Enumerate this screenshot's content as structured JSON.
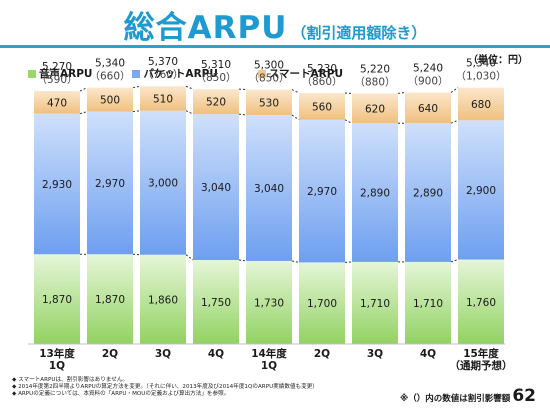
{
  "header": {
    "title": "総合ARPU",
    "subtitle": "（割引適用額除き）",
    "unit": "（単位：円）"
  },
  "legend": [
    {
      "marker": "░",
      "label": "音声ARPU",
      "color": "#9bd76a"
    },
    {
      "marker": "░",
      "label": "パケットARPU",
      "color": "#7ba8f0"
    },
    {
      "marker": "░",
      "label": "スマートARPU",
      "color": "#f3c98a"
    }
  ],
  "colors": {
    "voice_top": "#e6f6d8",
    "voice_bottom": "#92d262",
    "packet_top": "#cfe0fb",
    "packet_bottom": "#6e9ff0",
    "smart_top": "#fbe7cc",
    "smart_bottom": "#f0c07e",
    "connector": "#333333"
  },
  "chart_data": {
    "type": "bar",
    "stacked": true,
    "categories": [
      [
        "13年度",
        "1Q"
      ],
      [
        "2Q"
      ],
      [
        "3Q"
      ],
      [
        "4Q"
      ],
      [
        "14年度",
        "1Q"
      ],
      [
        "2Q"
      ],
      [
        "3Q"
      ],
      [
        "4Q"
      ],
      [
        "15年度",
        "（通期予想）"
      ]
    ],
    "series": [
      {
        "name": "音声ARPU",
        "values": [
          1870,
          1870,
          1860,
          1750,
          1730,
          1700,
          1710,
          1710,
          1760
        ]
      },
      {
        "name": "パケットARPU",
        "values": [
          2930,
          2970,
          3000,
          3040,
          3040,
          2970,
          2890,
          2890,
          2900
        ]
      },
      {
        "name": "スマートARPU",
        "values": [
          470,
          500,
          510,
          520,
          530,
          560,
          620,
          640,
          680
        ]
      }
    ],
    "totals": [
      5270,
      5340,
      5370,
      5310,
      5300,
      5230,
      5220,
      5240,
      5340
    ],
    "discounts": [
      590,
      660,
      760,
      850,
      850,
      860,
      880,
      900,
      1030
    ],
    "value_labels": {
      "voice": [
        "1,870",
        "1,870",
        "1,860",
        "1,750",
        "1,730",
        "1,700",
        "1,710",
        "1,710",
        "1,760"
      ],
      "packet": [
        "2,930",
        "2,970",
        "3,000",
        "3,040",
        "3,040",
        "2,970",
        "2,890",
        "2,890",
        "2,900"
      ],
      "smart": [
        "470",
        "500",
        "510",
        "520",
        "530",
        "560",
        "620",
        "640",
        "680"
      ],
      "totals": [
        "5,270",
        "5,340",
        "5,370",
        "5,310",
        "5,300",
        "5,230",
        "5,220",
        "5,240",
        "5,340"
      ],
      "discounts": [
        "（590）",
        "（660）",
        "（760）",
        "（850）",
        "（850）",
        "（860）",
        "（880）",
        "（900）",
        "（1,030）"
      ]
    },
    "ylim": [
      0,
      5500
    ],
    "grid": false,
    "legend_position": "top-left"
  },
  "footnotes": [
    "◆ スマートARPUは、割引影響はありません。",
    "◆ 2014年度第2四半期よりARPUの算定方法を変更。（それに伴い、2013年度及び2014年度1QのARPU実績数値も変更）",
    "◆ ARPUの定義については、本資料の「ARPU・MOUの定義および算出方法」を参照。"
  ],
  "note_right": "※（）内の数値は割引影響額",
  "page_number": "62"
}
